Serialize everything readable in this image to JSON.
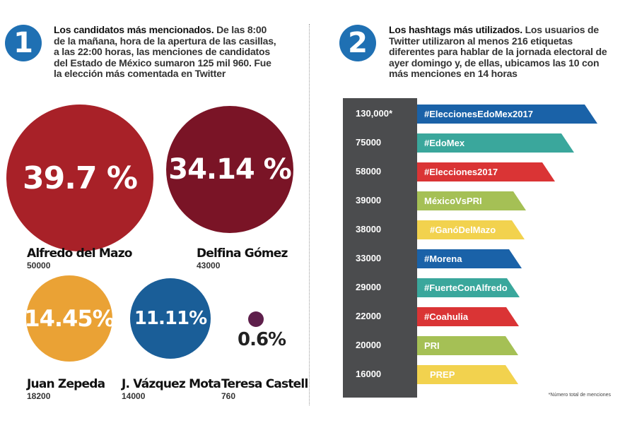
{
  "section1": {
    "number": "1",
    "title": "Los candidatos más mencionados.",
    "body": " De las 8:00 de la mañana, hora de la apertura de las casillas, a las 22:00 horas, las menciones de candidatos del Estado de México sumaron 125 mil 960. Fue la elección más comentada en Twitter"
  },
  "section2": {
    "number": "2",
    "title": "Los hashtags más utilizados.",
    "body": " Los usuarios de Twitter utilizaron al menos 216 etiquetas diferentes para hablar de la jornada electoral de ayer domingo y, de ellas, ubicamos las 10 con más menciones en 14 horas"
  },
  "footnote": "*Número total de menciones",
  "chart_data": [
    {
      "type": "bubble",
      "series": [
        {
          "name": "Alfredo del Mazo",
          "mentions": 50000,
          "mentions_label": "50000",
          "percent": 39.7,
          "percent_label": "39.7 %",
          "color": "#a82128"
        },
        {
          "name": "Delfina Gómez",
          "mentions": 43000,
          "mentions_label": "43000",
          "percent": 34.14,
          "percent_label": "34.14 %",
          "color": "#7a1426"
        },
        {
          "name": "Juan Zepeda",
          "mentions": 18200,
          "mentions_label": "18200",
          "percent": 14.45,
          "percent_label": "14.45%",
          "color": "#eaa235"
        },
        {
          "name": "J. Vázquez Mota",
          "mentions": 14000,
          "mentions_label": "14000",
          "percent": 11.11,
          "percent_label": "11.11%",
          "color": "#1a5e98"
        },
        {
          "name": "Teresa Castell",
          "mentions": 760,
          "mentions_label": "760",
          "percent": 0.6,
          "percent_label": "0.6%",
          "color": "#5e1f4b"
        }
      ]
    },
    {
      "type": "bar",
      "orientation": "horizontal",
      "categories": [
        "#EleccionesEdoMex2017",
        "#EdoMex",
        "#Elecciones2017",
        "MéxicoVsPRI",
        "#GanóDelMazo",
        "#Morena",
        "#FuerteConAlfredo",
        "#Coahulia",
        "PRI",
        "PREP"
      ],
      "values": [
        130000,
        75000,
        58000,
        39000,
        38000,
        33000,
        29000,
        22000,
        20000,
        16000
      ],
      "value_labels": [
        "130,000*",
        "75000",
        "58000",
        "39000",
        "38000",
        "33000",
        "29000",
        "22000",
        "20000",
        "16000"
      ],
      "colors": [
        "#1a62a8",
        "#3aa79c",
        "#da3435",
        "#a5c055",
        "#f2d24e",
        "#1a62a8",
        "#3aa79c",
        "#da3435",
        "#a5c055",
        "#f2d24e"
      ]
    }
  ]
}
